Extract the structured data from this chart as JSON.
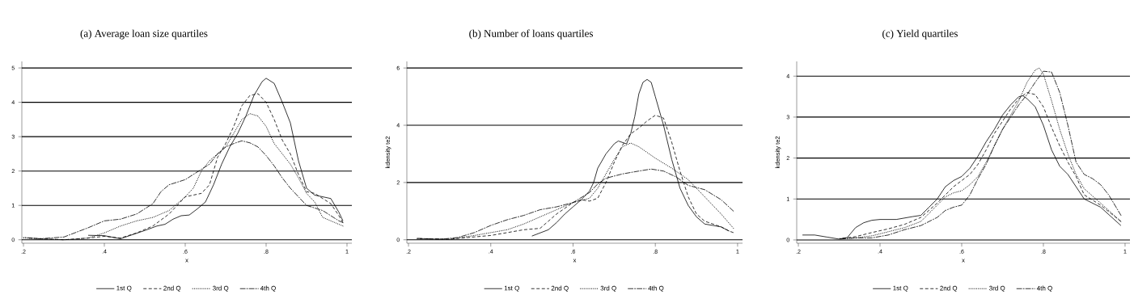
{
  "chart_data": [
    {
      "type": "line",
      "title": "(a) Average loan size quartiles",
      "xlabel": "x",
      "xlim": [
        0.196,
        1.012
      ],
      "ylim": [
        -0.1,
        5.19
      ],
      "xticks": [
        {
          "value": 0.2,
          "label": ".2"
        },
        {
          "value": 0.4,
          "label": ".4"
        },
        {
          "value": 0.6,
          "label": ".6"
        },
        {
          "value": 0.8,
          "label": ".8"
        },
        1
      ],
      "yticks": [
        0,
        1,
        2,
        3,
        4,
        5
      ],
      "grid": "y",
      "legend": "bottom",
      "series": [
        {
          "name": "1st Q",
          "color": "#000000",
          "line_style": "solid",
          "x": [
            0.36,
            0.4,
            0.44,
            0.47,
            0.5,
            0.53,
            0.55,
            0.57,
            0.59,
            0.61,
            0.63,
            0.65,
            0.67,
            0.69,
            0.71,
            0.73,
            0.75,
            0.77,
            0.79,
            0.8,
            0.82,
            0.84,
            0.86,
            0.88,
            0.9,
            0.92,
            0.94,
            0.96,
            0.98,
            0.99
          ],
          "values": [
            0.13,
            0.12,
            0.03,
            0.15,
            0.27,
            0.4,
            0.45,
            0.6,
            0.7,
            0.72,
            0.9,
            1.1,
            1.6,
            2.2,
            2.7,
            3.1,
            3.6,
            4.2,
            4.6,
            4.7,
            4.55,
            4.0,
            3.4,
            2.3,
            1.5,
            1.3,
            1.25,
            1.2,
            0.8,
            0.55
          ]
        },
        {
          "name": "2nd Q",
          "color": "#000000",
          "line_style": "dashed",
          "x": [
            0.21,
            0.3,
            0.36,
            0.4,
            0.44,
            0.48,
            0.52,
            0.56,
            0.58,
            0.6,
            0.62,
            0.64,
            0.66,
            0.68,
            0.7,
            0.72,
            0.74,
            0.76,
            0.78,
            0.8,
            0.82,
            0.84,
            0.86,
            0.88,
            0.9,
            0.92,
            0.94,
            0.96,
            0.98,
            0.99
          ],
          "values": [
            0.05,
            0.0,
            0.05,
            0.1,
            0.05,
            0.2,
            0.4,
            0.75,
            1.0,
            1.25,
            1.3,
            1.35,
            1.6,
            2.4,
            2.8,
            3.3,
            3.9,
            4.2,
            4.25,
            4.0,
            3.5,
            2.9,
            2.5,
            1.9,
            1.4,
            1.35,
            1.2,
            1.05,
            0.7,
            0.5
          ]
        },
        {
          "name": "3rd Q",
          "color": "#000000",
          "line_style": "dotted",
          "x": [
            0.2,
            0.3,
            0.36,
            0.4,
            0.44,
            0.48,
            0.52,
            0.56,
            0.58,
            0.6,
            0.62,
            0.64,
            0.66,
            0.68,
            0.7,
            0.72,
            0.74,
            0.76,
            0.78,
            0.8,
            0.82,
            0.84,
            0.86,
            0.88,
            0.9,
            0.92,
            0.94,
            0.96,
            0.98,
            0.99
          ],
          "values": [
            0.05,
            0.0,
            0.05,
            0.2,
            0.4,
            0.55,
            0.65,
            0.85,
            1.05,
            1.25,
            1.5,
            2.0,
            2.3,
            2.5,
            2.7,
            3.1,
            3.5,
            3.67,
            3.6,
            3.3,
            2.8,
            2.5,
            2.2,
            1.8,
            1.35,
            1.1,
            0.65,
            0.55,
            0.45,
            0.4
          ]
        },
        {
          "name": "4th Q",
          "color": "#000000",
          "line_style": "dashdot",
          "x": [
            0.2,
            0.24,
            0.3,
            0.36,
            0.4,
            0.44,
            0.48,
            0.52,
            0.54,
            0.56,
            0.6,
            0.62,
            0.64,
            0.66,
            0.68,
            0.7,
            0.72,
            0.74,
            0.76,
            0.78,
            0.8,
            0.82,
            0.84,
            0.86,
            0.88,
            0.9,
            0.94,
            0.98,
            0.99
          ],
          "values": [
            0.07,
            0.03,
            0.08,
            0.35,
            0.55,
            0.6,
            0.75,
            1.05,
            1.4,
            1.6,
            1.75,
            1.9,
            2.05,
            2.2,
            2.5,
            2.7,
            2.8,
            2.88,
            2.82,
            2.7,
            2.45,
            2.15,
            1.8,
            1.5,
            1.25,
            1.0,
            0.85,
            0.55,
            0.5
          ]
        }
      ]
    },
    {
      "type": "line",
      "title": "(b) Number of loans quartiles",
      "xlabel": "x",
      "ylabel": "kdensity te2",
      "xlim": [
        0.196,
        1.012
      ],
      "ylim": [
        -0.12,
        6.23
      ],
      "xticks": [
        {
          "value": 0.2,
          "label": ".2"
        },
        {
          "value": 0.4,
          "label": ".4"
        },
        {
          "value": 0.6,
          "label": ".6"
        },
        {
          "value": 0.8,
          "label": ".8"
        },
        1
      ],
      "yticks": [
        0,
        2,
        4,
        6
      ],
      "grid": "y",
      "legend": "bottom",
      "series": [
        {
          "name": "1st Q",
          "color": "#000000",
          "line_style": "solid",
          "x": [
            0.5,
            0.54,
            0.56,
            0.58,
            0.6,
            0.62,
            0.64,
            0.65,
            0.66,
            0.68,
            0.7,
            0.71,
            0.72,
            0.73,
            0.74,
            0.75,
            0.76,
            0.77,
            0.78,
            0.79,
            0.8,
            0.82,
            0.84,
            0.86,
            0.88,
            0.9,
            0.92,
            0.94,
            0.96,
            0.98
          ],
          "values": [
            0.13,
            0.35,
            0.6,
            0.9,
            1.15,
            1.4,
            1.7,
            2.0,
            2.5,
            3.0,
            3.35,
            3.45,
            3.4,
            3.35,
            3.7,
            4.3,
            5.1,
            5.5,
            5.6,
            5.5,
            5.0,
            4.0,
            2.8,
            1.8,
            1.2,
            0.8,
            0.55,
            0.5,
            0.45,
            0.3
          ]
        },
        {
          "name": "2nd Q",
          "color": "#000000",
          "line_style": "dashed",
          "x": [
            0.22,
            0.3,
            0.36,
            0.4,
            0.44,
            0.48,
            0.52,
            0.56,
            0.6,
            0.62,
            0.64,
            0.66,
            0.68,
            0.7,
            0.72,
            0.74,
            0.76,
            0.78,
            0.8,
            0.82,
            0.84,
            0.86,
            0.88,
            0.9,
            0.92,
            0.94,
            0.96,
            0.98,
            0.99
          ],
          "values": [
            0.04,
            0.02,
            0.1,
            0.15,
            0.25,
            0.35,
            0.4,
            0.9,
            1.3,
            1.4,
            1.35,
            1.45,
            2.0,
            2.7,
            3.3,
            3.7,
            3.9,
            4.15,
            4.35,
            4.25,
            3.4,
            2.4,
            1.5,
            0.9,
            0.65,
            0.55,
            0.45,
            0.3,
            0.25
          ]
        },
        {
          "name": "3rd Q",
          "color": "#000000",
          "line_style": "dotted",
          "x": [
            0.22,
            0.3,
            0.36,
            0.4,
            0.44,
            0.48,
            0.52,
            0.56,
            0.6,
            0.64,
            0.66,
            0.68,
            0.7,
            0.72,
            0.74,
            0.76,
            0.78,
            0.8,
            0.84,
            0.88,
            0.92,
            0.96,
            0.99
          ],
          "values": [
            0.04,
            0.02,
            0.15,
            0.25,
            0.35,
            0.55,
            0.8,
            1.05,
            1.3,
            1.45,
            1.8,
            2.3,
            2.8,
            3.25,
            3.38,
            3.25,
            3.05,
            2.85,
            2.5,
            2.1,
            1.5,
            0.9,
            0.4
          ]
        },
        {
          "name": "4th Q",
          "color": "#000000",
          "line_style": "dashdot",
          "x": [
            0.22,
            0.28,
            0.32,
            0.36,
            0.4,
            0.44,
            0.48,
            0.52,
            0.56,
            0.6,
            0.64,
            0.66,
            0.68,
            0.72,
            0.76,
            0.79,
            0.82,
            0.85,
            0.88,
            0.92,
            0.96,
            0.99
          ],
          "values": [
            0.05,
            0.02,
            0.08,
            0.25,
            0.5,
            0.7,
            0.85,
            1.05,
            1.15,
            1.3,
            1.65,
            1.95,
            2.15,
            2.3,
            2.4,
            2.47,
            2.4,
            2.2,
            1.9,
            1.75,
            1.4,
            1.0
          ]
        }
      ]
    },
    {
      "type": "line",
      "title": "(c) Yield quartiles",
      "xlabel": "x",
      "ylabel": "kdensity te2",
      "xlim": [
        0.196,
        1.012
      ],
      "ylim": [
        -0.08,
        4.36
      ],
      "xticks": [
        {
          "value": 0.2,
          "label": ".2"
        },
        {
          "value": 0.4,
          "label": ".4"
        },
        {
          "value": 0.6,
          "label": ".6"
        },
        {
          "value": 0.8,
          "label": ".8"
        },
        1
      ],
      "yticks": [
        0,
        1,
        2,
        3,
        4
      ],
      "grid": "y",
      "legend": "bottom",
      "series": [
        {
          "name": "1st Q",
          "color": "#000000",
          "line_style": "solid",
          "x": [
            0.21,
            0.24,
            0.27,
            0.3,
            0.32,
            0.34,
            0.36,
            0.38,
            0.4,
            0.44,
            0.48,
            0.5,
            0.52,
            0.54,
            0.56,
            0.58,
            0.6,
            0.62,
            0.64,
            0.66,
            0.68,
            0.7,
            0.72,
            0.74,
            0.75,
            0.76,
            0.78,
            0.8,
            0.82,
            0.84,
            0.86,
            0.88,
            0.9,
            0.94,
            0.99
          ],
          "values": [
            0.12,
            0.12,
            0.07,
            0.02,
            0.06,
            0.3,
            0.42,
            0.48,
            0.5,
            0.5,
            0.57,
            0.6,
            0.8,
            1.0,
            1.3,
            1.45,
            1.55,
            1.75,
            2.05,
            2.4,
            2.7,
            3.05,
            3.3,
            3.5,
            3.52,
            3.45,
            3.25,
            2.8,
            2.2,
            1.8,
            1.6,
            1.3,
            1.0,
            0.8,
            0.35
          ]
        },
        {
          "name": "2nd Q",
          "color": "#000000",
          "line_style": "dashed",
          "x": [
            0.3,
            0.34,
            0.38,
            0.42,
            0.46,
            0.5,
            0.54,
            0.56,
            0.58,
            0.6,
            0.62,
            0.64,
            0.66,
            0.68,
            0.7,
            0.72,
            0.74,
            0.76,
            0.78,
            0.8,
            0.82,
            0.84,
            0.86,
            0.88,
            0.9,
            0.94,
            0.99
          ],
          "values": [
            0.03,
            0.08,
            0.18,
            0.27,
            0.38,
            0.55,
            0.9,
            1.1,
            1.3,
            1.45,
            1.6,
            1.85,
            2.2,
            2.6,
            2.9,
            3.2,
            3.45,
            3.6,
            3.55,
            3.25,
            2.75,
            2.3,
            1.9,
            1.55,
            1.1,
            0.85,
            0.45
          ]
        },
        {
          "name": "3rd Q",
          "color": "#000000",
          "line_style": "dotted",
          "x": [
            0.3,
            0.34,
            0.38,
            0.42,
            0.46,
            0.5,
            0.54,
            0.56,
            0.58,
            0.6,
            0.62,
            0.64,
            0.66,
            0.68,
            0.7,
            0.72,
            0.74,
            0.76,
            0.78,
            0.79,
            0.8,
            0.82,
            0.84,
            0.86,
            0.88,
            0.9,
            0.94,
            0.99
          ],
          "values": [
            0.03,
            0.05,
            0.1,
            0.2,
            0.3,
            0.45,
            0.85,
            1.05,
            1.15,
            1.2,
            1.35,
            1.55,
            1.9,
            2.3,
            2.7,
            3.05,
            3.4,
            3.85,
            4.15,
            4.2,
            4.05,
            3.4,
            2.7,
            2.1,
            1.6,
            1.25,
            0.9,
            0.45
          ]
        },
        {
          "name": "4th Q",
          "color": "#000000",
          "line_style": "dashdot",
          "x": [
            0.3,
            0.34,
            0.38,
            0.42,
            0.46,
            0.5,
            0.54,
            0.56,
            0.58,
            0.6,
            0.62,
            0.64,
            0.66,
            0.68,
            0.7,
            0.72,
            0.74,
            0.76,
            0.78,
            0.8,
            0.82,
            0.84,
            0.86,
            0.88,
            0.9,
            0.92,
            0.94,
            0.96,
            0.99
          ],
          "values": [
            0.02,
            0.05,
            0.05,
            0.12,
            0.25,
            0.35,
            0.55,
            0.72,
            0.8,
            0.85,
            1.1,
            1.5,
            1.85,
            2.3,
            2.7,
            3.0,
            3.3,
            3.55,
            3.85,
            4.12,
            4.1,
            3.6,
            2.8,
            1.9,
            1.6,
            1.5,
            1.35,
            1.1,
            0.6
          ]
        }
      ]
    }
  ]
}
